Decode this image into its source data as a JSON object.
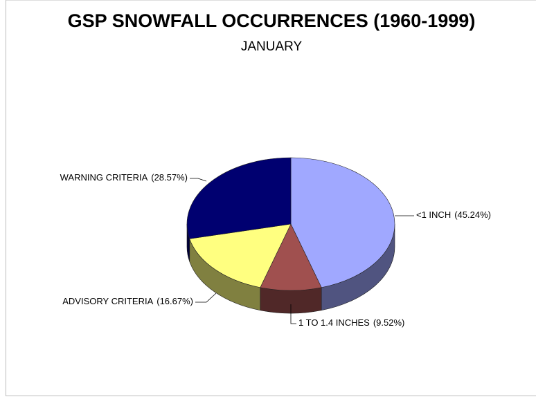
{
  "chart_data": {
    "type": "pie",
    "title": "GSP SNOWFALL OCCURRENCES (1960-1999)",
    "subtitle": "JANUARY",
    "categories": [
      "<1 INCH",
      "1 TO 1.4 INCHES",
      "ADVISORY CRITERIA",
      "WARNING CRITERIA"
    ],
    "values": [
      45.24,
      9.52,
      16.67,
      28.57
    ],
    "value_labels": [
      "(45.24%)",
      "(9.52%)",
      "(16.67%)",
      "(28.57%)"
    ],
    "colors": [
      "#a0a8ff",
      "#a0504f",
      "#ffff80",
      "#000070"
    ]
  }
}
